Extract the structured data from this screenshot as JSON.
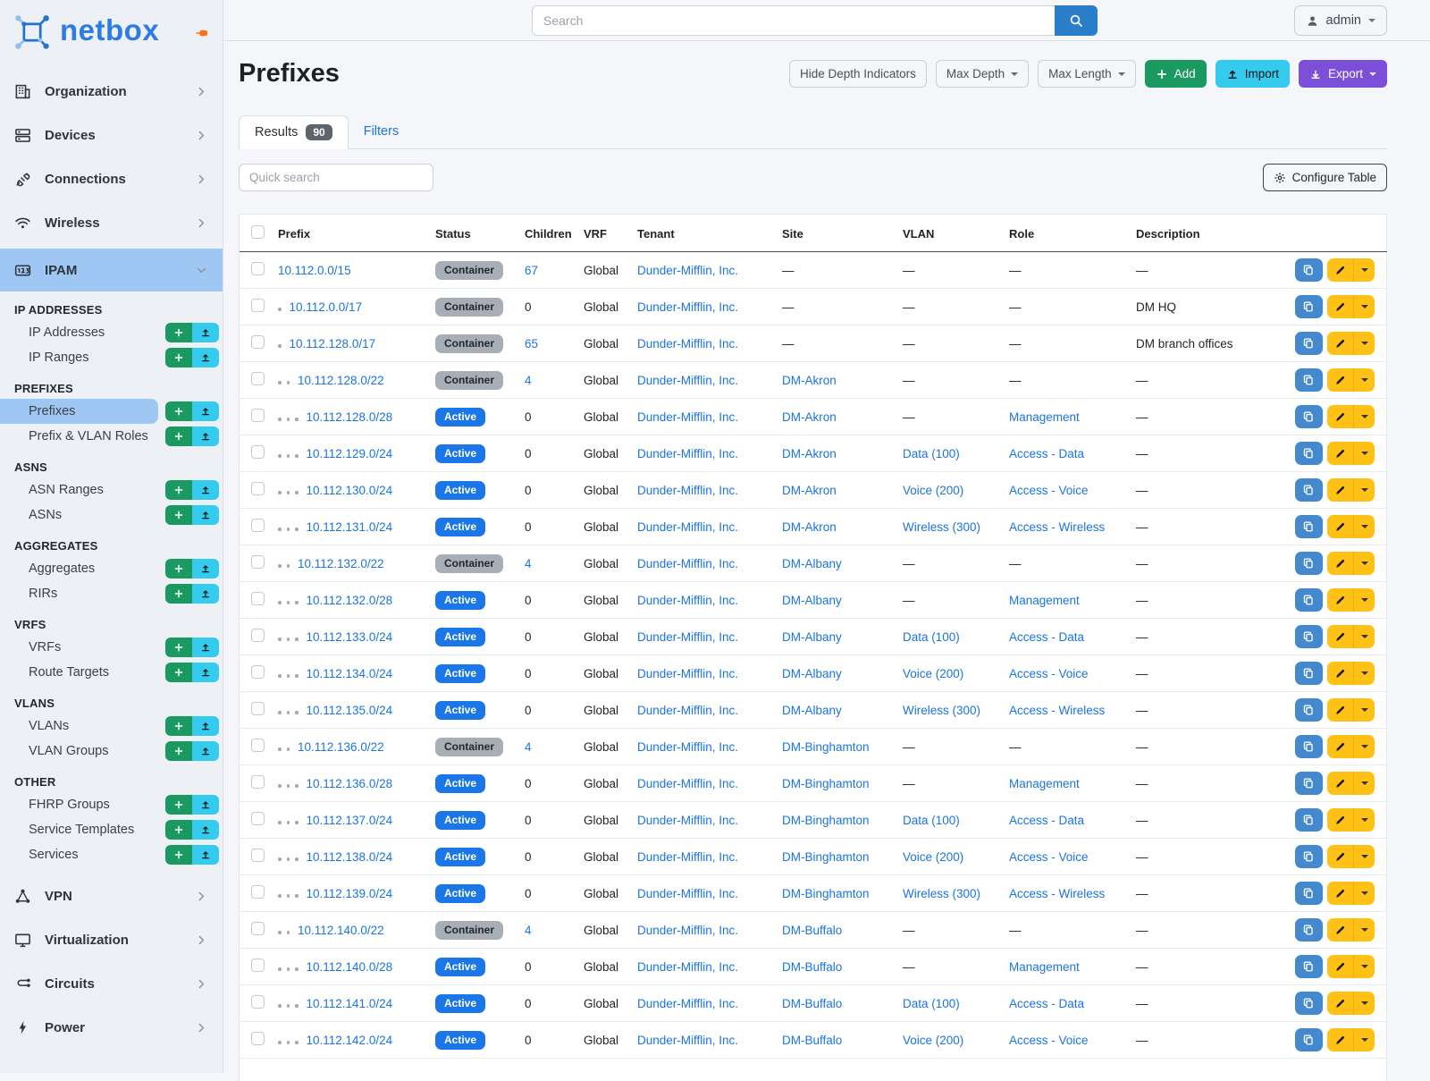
{
  "topbar": {
    "search_placeholder": "Search",
    "user_label": "admin"
  },
  "sidebar": {
    "logo_text": "netbox",
    "top_items": [
      {
        "label": "Organization",
        "icon": "building"
      },
      {
        "label": "Devices",
        "icon": "server"
      },
      {
        "label": "Connections",
        "icon": "plug"
      },
      {
        "label": "Wireless",
        "icon": "wifi"
      }
    ],
    "ipam": {
      "label": "IPAM",
      "icon": "counter"
    },
    "sections": [
      {
        "header": "IP ADDRESSES",
        "items": [
          {
            "label": "IP Addresses"
          },
          {
            "label": "IP Ranges"
          }
        ]
      },
      {
        "header": "PREFIXES",
        "items": [
          {
            "label": "Prefixes",
            "active": true
          },
          {
            "label": "Prefix & VLAN Roles"
          }
        ]
      },
      {
        "header": "ASNS",
        "items": [
          {
            "label": "ASN Ranges"
          },
          {
            "label": "ASNs"
          }
        ]
      },
      {
        "header": "AGGREGATES",
        "items": [
          {
            "label": "Aggregates"
          },
          {
            "label": "RIRs"
          }
        ]
      },
      {
        "header": "VRFS",
        "items": [
          {
            "label": "VRFs"
          },
          {
            "label": "Route Targets"
          }
        ]
      },
      {
        "header": "VLANS",
        "items": [
          {
            "label": "VLANs"
          },
          {
            "label": "VLAN Groups"
          }
        ]
      },
      {
        "header": "OTHER",
        "items": [
          {
            "label": "FHRP Groups"
          },
          {
            "label": "Service Templates"
          },
          {
            "label": "Services"
          }
        ]
      }
    ],
    "bottom_items": [
      {
        "label": "VPN",
        "icon": "share"
      },
      {
        "label": "Virtualization",
        "icon": "monitor"
      },
      {
        "label": "Circuits",
        "icon": "circuit"
      },
      {
        "label": "Power",
        "icon": "bolt"
      }
    ]
  },
  "page": {
    "title": "Prefixes",
    "toolbar": {
      "hide_depth_label": "Hide Depth Indicators",
      "max_depth_label": "Max Depth",
      "max_length_label": "Max Length",
      "add_label": "Add",
      "import_label": "Import",
      "export_label": "Export"
    },
    "tabs": {
      "results_label": "Results",
      "results_count": "90",
      "filters_label": "Filters"
    },
    "quick_search_placeholder": "Quick search",
    "configure_table_label": "Configure Table"
  },
  "table": {
    "columns": [
      "Prefix",
      "Status",
      "Children",
      "VRF",
      "Tenant",
      "Site",
      "VLAN",
      "Role",
      "Description"
    ],
    "empty_placeholder": "—",
    "rows": [
      {
        "depth": 0,
        "prefix": "10.112.0.0/15",
        "status": "Container",
        "children": "67",
        "children_is_link": true,
        "vrf": "Global",
        "tenant": "Dunder-Mifflin, Inc.",
        "site": "",
        "vlan": "",
        "role": "",
        "description": ""
      },
      {
        "depth": 1,
        "prefix": "10.112.0.0/17",
        "status": "Container",
        "children": "0",
        "children_is_link": false,
        "vrf": "Global",
        "tenant": "Dunder-Mifflin, Inc.",
        "site": "",
        "vlan": "",
        "role": "",
        "description": "DM HQ"
      },
      {
        "depth": 1,
        "prefix": "10.112.128.0/17",
        "status": "Container",
        "children": "65",
        "children_is_link": true,
        "vrf": "Global",
        "tenant": "Dunder-Mifflin, Inc.",
        "site": "",
        "vlan": "",
        "role": "",
        "description": "DM branch offices"
      },
      {
        "depth": 2,
        "prefix": "10.112.128.0/22",
        "status": "Container",
        "children": "4",
        "children_is_link": true,
        "vrf": "Global",
        "tenant": "Dunder-Mifflin, Inc.",
        "site": "DM-Akron",
        "vlan": "",
        "role": "",
        "description": ""
      },
      {
        "depth": 3,
        "prefix": "10.112.128.0/28",
        "status": "Active",
        "children": "0",
        "children_is_link": false,
        "vrf": "Global",
        "tenant": "Dunder-Mifflin, Inc.",
        "site": "DM-Akron",
        "vlan": "",
        "role": "Management",
        "description": ""
      },
      {
        "depth": 3,
        "prefix": "10.112.129.0/24",
        "status": "Active",
        "children": "0",
        "children_is_link": false,
        "vrf": "Global",
        "tenant": "Dunder-Mifflin, Inc.",
        "site": "DM-Akron",
        "vlan": "Data (100)",
        "role": "Access - Data",
        "description": ""
      },
      {
        "depth": 3,
        "prefix": "10.112.130.0/24",
        "status": "Active",
        "children": "0",
        "children_is_link": false,
        "vrf": "Global",
        "tenant": "Dunder-Mifflin, Inc.",
        "site": "DM-Akron",
        "vlan": "Voice (200)",
        "role": "Access - Voice",
        "description": ""
      },
      {
        "depth": 3,
        "prefix": "10.112.131.0/24",
        "status": "Active",
        "children": "0",
        "children_is_link": false,
        "vrf": "Global",
        "tenant": "Dunder-Mifflin, Inc.",
        "site": "DM-Akron",
        "vlan": "Wireless (300)",
        "role": "Access - Wireless",
        "description": ""
      },
      {
        "depth": 2,
        "prefix": "10.112.132.0/22",
        "status": "Container",
        "children": "4",
        "children_is_link": true,
        "vrf": "Global",
        "tenant": "Dunder-Mifflin, Inc.",
        "site": "DM-Albany",
        "vlan": "",
        "role": "",
        "description": ""
      },
      {
        "depth": 3,
        "prefix": "10.112.132.0/28",
        "status": "Active",
        "children": "0",
        "children_is_link": false,
        "vrf": "Global",
        "tenant": "Dunder-Mifflin, Inc.",
        "site": "DM-Albany",
        "vlan": "",
        "role": "Management",
        "description": ""
      },
      {
        "depth": 3,
        "prefix": "10.112.133.0/24",
        "status": "Active",
        "children": "0",
        "children_is_link": false,
        "vrf": "Global",
        "tenant": "Dunder-Mifflin, Inc.",
        "site": "DM-Albany",
        "vlan": "Data (100)",
        "role": "Access - Data",
        "description": ""
      },
      {
        "depth": 3,
        "prefix": "10.112.134.0/24",
        "status": "Active",
        "children": "0",
        "children_is_link": false,
        "vrf": "Global",
        "tenant": "Dunder-Mifflin, Inc.",
        "site": "DM-Albany",
        "vlan": "Voice (200)",
        "role": "Access - Voice",
        "description": ""
      },
      {
        "depth": 3,
        "prefix": "10.112.135.0/24",
        "status": "Active",
        "children": "0",
        "children_is_link": false,
        "vrf": "Global",
        "tenant": "Dunder-Mifflin, Inc.",
        "site": "DM-Albany",
        "vlan": "Wireless (300)",
        "role": "Access - Wireless",
        "description": ""
      },
      {
        "depth": 2,
        "prefix": "10.112.136.0/22",
        "status": "Container",
        "children": "4",
        "children_is_link": true,
        "vrf": "Global",
        "tenant": "Dunder-Mifflin, Inc.",
        "site": "DM-Binghamton",
        "vlan": "",
        "role": "",
        "description": ""
      },
      {
        "depth": 3,
        "prefix": "10.112.136.0/28",
        "status": "Active",
        "children": "0",
        "children_is_link": false,
        "vrf": "Global",
        "tenant": "Dunder-Mifflin, Inc.",
        "site": "DM-Binghamton",
        "vlan": "",
        "role": "Management",
        "description": ""
      },
      {
        "depth": 3,
        "prefix": "10.112.137.0/24",
        "status": "Active",
        "children": "0",
        "children_is_link": false,
        "vrf": "Global",
        "tenant": "Dunder-Mifflin, Inc.",
        "site": "DM-Binghamton",
        "vlan": "Data (100)",
        "role": "Access - Data",
        "description": ""
      },
      {
        "depth": 3,
        "prefix": "10.112.138.0/24",
        "status": "Active",
        "children": "0",
        "children_is_link": false,
        "vrf": "Global",
        "tenant": "Dunder-Mifflin, Inc.",
        "site": "DM-Binghamton",
        "vlan": "Voice (200)",
        "role": "Access - Voice",
        "description": ""
      },
      {
        "depth": 3,
        "prefix": "10.112.139.0/24",
        "status": "Active",
        "children": "0",
        "children_is_link": false,
        "vrf": "Global",
        "tenant": "Dunder-Mifflin, Inc.",
        "site": "DM-Binghamton",
        "vlan": "Wireless (300)",
        "role": "Access - Wireless",
        "description": ""
      },
      {
        "depth": 2,
        "prefix": "10.112.140.0/22",
        "status": "Container",
        "children": "4",
        "children_is_link": true,
        "vrf": "Global",
        "tenant": "Dunder-Mifflin, Inc.",
        "site": "DM-Buffalo",
        "vlan": "",
        "role": "",
        "description": ""
      },
      {
        "depth": 3,
        "prefix": "10.112.140.0/28",
        "status": "Active",
        "children": "0",
        "children_is_link": false,
        "vrf": "Global",
        "tenant": "Dunder-Mifflin, Inc.",
        "site": "DM-Buffalo",
        "vlan": "",
        "role": "Management",
        "description": ""
      },
      {
        "depth": 3,
        "prefix": "10.112.141.0/24",
        "status": "Active",
        "children": "0",
        "children_is_link": false,
        "vrf": "Global",
        "tenant": "Dunder-Mifflin, Inc.",
        "site": "DM-Buffalo",
        "vlan": "Data (100)",
        "role": "Access - Data",
        "description": ""
      },
      {
        "depth": 3,
        "prefix": "10.112.142.0/24",
        "status": "Active",
        "children": "0",
        "children_is_link": false,
        "vrf": "Global",
        "tenant": "Dunder-Mifflin, Inc.",
        "site": "DM-Buffalo",
        "vlan": "Voice (200)",
        "role": "Access - Voice",
        "description": ""
      }
    ]
  },
  "colors": {
    "accent_blue_link": "#1b74e0",
    "badge_active": "#1b77e8",
    "badge_container": "#a7aeb6",
    "btn_add_green": "#1a9961",
    "btn_import_cyan": "#35cbee",
    "btn_export_purple": "#7c4fd9",
    "btn_copy_blue": "#4489ce",
    "btn_edit_yellow": "#ffc116",
    "sidebar_active_bg": "#9fc7f3",
    "logo_blue": "#2d7ce5",
    "pin_orange": "#f97316",
    "search_btn_blue": "#2a7dc9"
  }
}
